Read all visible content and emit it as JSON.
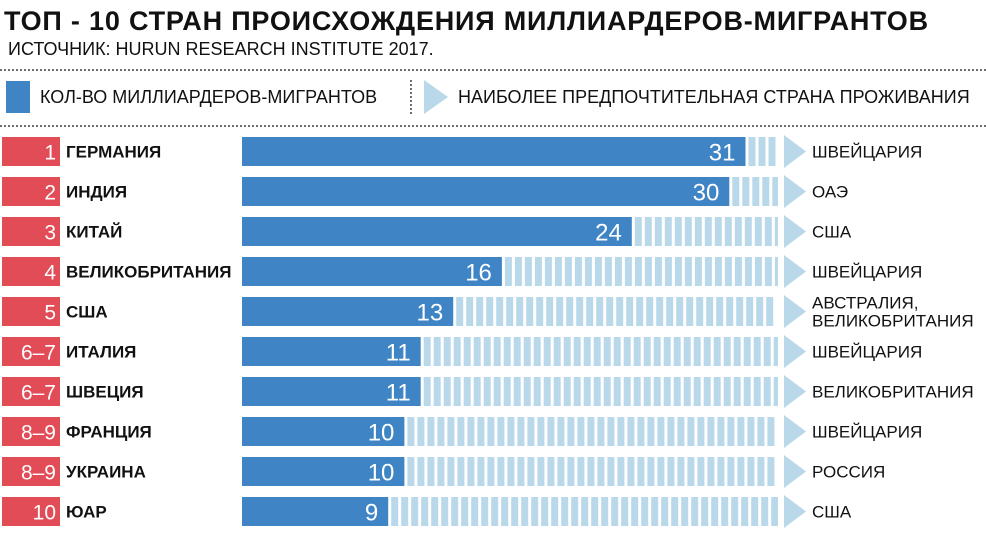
{
  "title": "ТОП - 10 СТРАН ПРОИСХОЖДЕНИЯ МИЛЛИАРДЕРОВ-МИГРАНТОВ",
  "source": "ИСТОЧНИК: HURUN RESEARCH INSTITUTE 2017.",
  "legend": {
    "count_label": "КОЛ-ВО МИЛЛИАРДЕРОВ-МИГРАНТОВ",
    "destination_label": "НАИБОЛЕЕ ПРЕДПОЧТИТЕЛЬНАЯ СТРАНА ПРОЖИВАНИЯ"
  },
  "colors": {
    "bar": "#3f85c6",
    "stripe": "#b9d8ea",
    "rank_badge": "#e14c57",
    "arrow": "#b9d8ea"
  },
  "chart_data": {
    "type": "bar",
    "orientation": "horizontal",
    "title": "ТОП - 10 СТРАН ПРОИСХОЖДЕНИЯ МИЛЛИАРДЕРОВ-МИГРАНТОВ",
    "xlim": [
      0,
      33
    ],
    "grid": false,
    "legend_position": "top",
    "rows": [
      {
        "rank": "1",
        "country": "ГЕРМАНИЯ",
        "value": 31,
        "destination": [
          "ШВЕЙЦАРИЯ"
        ]
      },
      {
        "rank": "2",
        "country": "ИНДИЯ",
        "value": 30,
        "destination": [
          "ОАЭ"
        ]
      },
      {
        "rank": "3",
        "country": "КИТАЙ",
        "value": 24,
        "destination": [
          "США"
        ]
      },
      {
        "rank": "4",
        "country": "ВЕЛИКОБРИТАНИЯ",
        "value": 16,
        "destination": [
          "ШВЕЙЦАРИЯ"
        ]
      },
      {
        "rank": "5",
        "country": "США",
        "value": 13,
        "destination": [
          "АВСТРАЛИЯ,",
          "ВЕЛИКОБРИТАНИЯ"
        ]
      },
      {
        "rank": "6–7",
        "country": "ИТАЛИЯ",
        "value": 11,
        "destination": [
          "ШВЕЙЦАРИЯ"
        ]
      },
      {
        "rank": "6–7",
        "country": "ШВЕЦИЯ",
        "value": 11,
        "destination": [
          "ВЕЛИКОБРИТАНИЯ"
        ]
      },
      {
        "rank": "8–9",
        "country": "ФРАНЦИЯ",
        "value": 10,
        "destination": [
          "ШВЕЙЦАРИЯ"
        ]
      },
      {
        "rank": "8–9",
        "country": "УКРАИНА",
        "value": 10,
        "destination": [
          "РОССИЯ"
        ]
      },
      {
        "rank": "10",
        "country": "ЮАР",
        "value": 9,
        "destination": [
          "США"
        ]
      }
    ]
  }
}
